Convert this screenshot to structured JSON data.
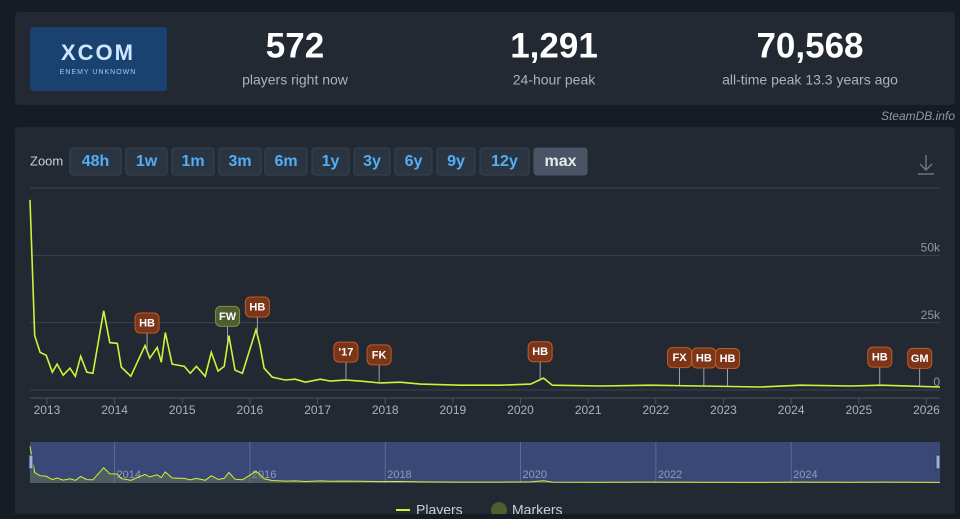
{
  "header": {
    "logo_title": "XCOM",
    "logo_subtitle": "ENEMY UNKNOWN",
    "stats": [
      {
        "value": "572",
        "label": "players right now"
      },
      {
        "value": "1,291",
        "label": "24-hour peak"
      },
      {
        "value": "70,568",
        "label": "all-time peak 13.3 years ago"
      }
    ],
    "credit": "SteamDB.info"
  },
  "zoom": {
    "label": "Zoom",
    "buttons": [
      "48h",
      "1w",
      "1m",
      "3m",
      "6m",
      "1y",
      "3y",
      "6y",
      "9y",
      "12y",
      "max"
    ],
    "active": "max"
  },
  "chart_data": {
    "type": "line",
    "x": [
      2012.75,
      2012.82,
      2012.9,
      2012.99,
      2013.08,
      2013.15,
      2013.24,
      2013.34,
      2013.42,
      2013.5,
      2013.59,
      2013.68,
      2013.84,
      2013.93,
      2014.04,
      2014.1,
      2014.24,
      2014.45,
      2014.52,
      2014.63,
      2014.69,
      2014.75,
      2014.85,
      2015.03,
      2015.12,
      2015.21,
      2015.34,
      2015.43,
      2015.53,
      2015.62,
      2015.69,
      2015.78,
      2015.89,
      2016.09,
      2016.15,
      2016.21,
      2016.33,
      2016.52,
      2016.67,
      2016.82,
      2017.04,
      2017.19,
      2017.41,
      2017.63,
      2017.93,
      2018.22,
      2018.52,
      2019.11,
      2019.7,
      2020.15,
      2020.34,
      2020.47,
      2021.18,
      2021.92,
      2022.66,
      2023.55,
      2024.14,
      2024.88,
      2025.32,
      2026.2
    ],
    "series": [
      {
        "name": "Players",
        "color": "#d2f23a",
        "values": [
          70568,
          20200,
          14000,
          12900,
          6600,
          9600,
          5500,
          8100,
          5100,
          12500,
          6600,
          6200,
          29400,
          17600,
          17300,
          8500,
          5100,
          16500,
          11800,
          15800,
          10300,
          21300,
          9600,
          8800,
          6200,
          8800,
          5100,
          14000,
          7000,
          8800,
          20200,
          7400,
          6200,
          22400,
          16500,
          8100,
          4800,
          3700,
          4000,
          2900,
          4000,
          3300,
          3700,
          3300,
          2600,
          2900,
          2200,
          1800,
          1800,
          2200,
          4400,
          1800,
          1500,
          1800,
          1500,
          1100,
          1800,
          1500,
          1800,
          1100
        ]
      }
    ],
    "markers_legend": {
      "name": "Markers",
      "color": "#4f5d30"
    },
    "markers": [
      {
        "label": "HB",
        "x": 2014.48,
        "color": "#7b3519"
      },
      {
        "label": "FW",
        "x": 2015.67,
        "color": "#4f5d30"
      },
      {
        "label": "HB",
        "x": 2016.11,
        "color": "#7b3519"
      },
      {
        "label": "'17",
        "x": 2017.42,
        "color": "#7b3519"
      },
      {
        "label": "FK",
        "x": 2017.91,
        "color": "#7b3519"
      },
      {
        "label": "HB",
        "x": 2020.29,
        "color": "#7b3519"
      },
      {
        "label": "FX",
        "x": 2022.35,
        "color": "#7b3519"
      },
      {
        "label": "HB",
        "x": 2022.71,
        "color": "#7b3519"
      },
      {
        "label": "HB",
        "x": 2023.06,
        "color": "#7b3519"
      },
      {
        "label": "HB",
        "x": 2025.31,
        "color": "#7b3519"
      },
      {
        "label": "GM",
        "x": 2025.9,
        "color": "#7b3519"
      }
    ],
    "xlim": [
      2012.75,
      2026.2
    ],
    "xticks": [
      2013,
      2014,
      2015,
      2016,
      2017,
      2018,
      2019,
      2020,
      2021,
      2022,
      2023,
      2024,
      2025,
      2026
    ],
    "ylim": [
      0,
      75000
    ],
    "yticks": [
      0,
      {
        "value": 25000,
        "label": "25k"
      },
      {
        "value": 50000,
        "label": "50k"
      }
    ],
    "grid": true,
    "navigator_xticks": [
      2014,
      2016,
      2018,
      2020,
      2022,
      2024
    ]
  }
}
